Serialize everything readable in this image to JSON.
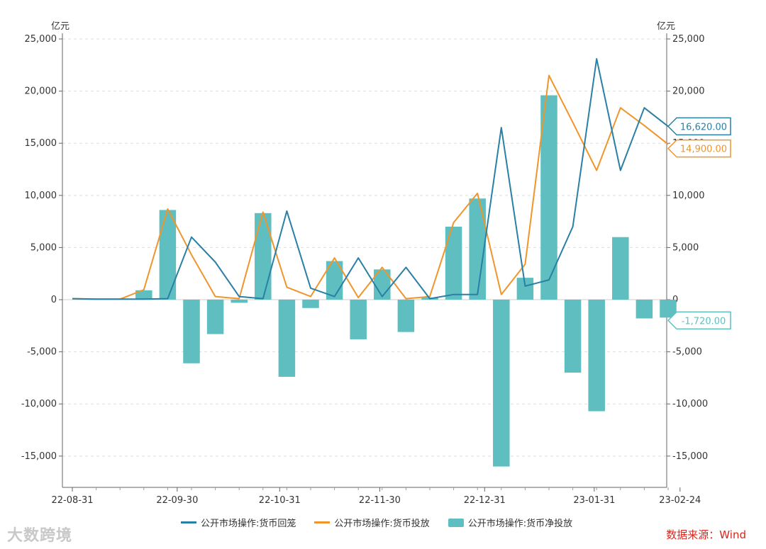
{
  "chart_data": {
    "type": "bar+line",
    "unit_left": "亿元",
    "unit_right": "亿元",
    "ylim": [
      -18000,
      25000
    ],
    "yticks": [
      -15000,
      -10000,
      -5000,
      0,
      5000,
      10000,
      15000,
      20000,
      25000
    ],
    "ytick_labels": [
      "-15,000",
      "-10,000",
      "-5,000",
      "0",
      "5,000",
      "10,000",
      "15,000",
      "20,000",
      "25,000"
    ],
    "x_tick_labels": [
      "22-08-31",
      "22-09-30",
      "22-10-31",
      "22-11-30",
      "22-12-31",
      "23-01-31",
      "23-02-24"
    ],
    "x_tick_positions": [
      0,
      4.4,
      8.7,
      12.9,
      17.3,
      21.9,
      25.5
    ],
    "n_points": 26,
    "series": [
      {
        "name": "公开市场操作:货币回笼",
        "type": "line",
        "color": "#2a7fa5",
        "values": [
          100,
          50,
          50,
          50,
          100,
          6000,
          3600,
          300,
          100,
          8500,
          1100,
          300,
          4000,
          300,
          3100,
          100,
          500,
          500,
          16500,
          1300,
          1900,
          7000,
          23100,
          12400,
          18400,
          16620
        ]
      },
      {
        "name": "公开市场操作:货币投放",
        "type": "line",
        "color": "#f0952b",
        "values": [
          100,
          50,
          50,
          950,
          8700,
          4300,
          300,
          100,
          8400,
          1200,
          300,
          4000,
          200,
          3100,
          100,
          300,
          7400,
          10200,
          500,
          3400,
          21500,
          17000,
          12400,
          18400,
          16700,
          14900
        ]
      },
      {
        "name": "公开市场操作:货币净投放",
        "type": "bar",
        "color": "#5fbfc0",
        "values": [
          0,
          0,
          0,
          900,
          8600,
          -6100,
          -3300,
          -300,
          8300,
          -7400,
          -800,
          3700,
          -3800,
          2900,
          -3100,
          200,
          7000,
          9700,
          -16000,
          2100,
          19600,
          -7000,
          -10700,
          6000,
          -1800,
          -1720
        ]
      }
    ],
    "end_labels": [
      {
        "series": "公开市场操作:货币回笼",
        "text": "16,620.00",
        "value": 16620,
        "color": "#2a7fa5"
      },
      {
        "series": "公开市场操作:货币投放",
        "text": "14,900.00",
        "value": 14900,
        "color": "#f0952b"
      },
      {
        "series": "公开市场操作:货币净投放",
        "text": "-1,720.00",
        "value": -1720,
        "color": "#5fbfc0"
      }
    ],
    "source": "数据来源：Wind",
    "watermark": "大数跨境"
  }
}
